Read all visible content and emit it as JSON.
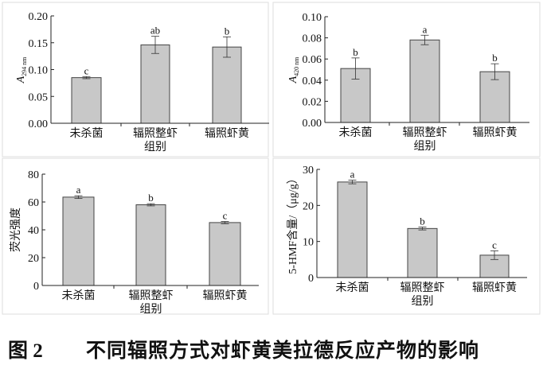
{
  "figure": {
    "label": "图 2",
    "caption": "不同辐照方式对虾黄美拉德反应产物的影响"
  },
  "colors": {
    "bar_fill": "#c8c8c8",
    "bar_stroke": "#444444",
    "axis": "#222222",
    "panel_border": "#dddddd"
  },
  "chart_data": [
    {
      "type": "bar",
      "title": "",
      "xlabel": "组别",
      "ylabel": "A294 nm",
      "ylabel_main": "A",
      "ylabel_sub": "294 nm",
      "categories": [
        "未杀菌",
        "辐照整虾",
        "辐照虾黄"
      ],
      "values": [
        0.085,
        0.146,
        0.142
      ],
      "errors": [
        0.002,
        0.016,
        0.019
      ],
      "significance": [
        "c",
        "ab",
        "b"
      ],
      "ylim": [
        0,
        0.2
      ],
      "yticks": [
        "0.00",
        "0.05",
        "0.10",
        "0.15",
        "0.20"
      ],
      "grid": false
    },
    {
      "type": "bar",
      "title": "",
      "xlabel": "组别",
      "ylabel": "A420 nm",
      "ylabel_main": "A",
      "ylabel_sub": "420 nm",
      "categories": [
        "未杀菌",
        "辐照整虾",
        "辐照虾黄"
      ],
      "values": [
        0.051,
        0.078,
        0.048
      ],
      "errors": [
        0.01,
        0.0045,
        0.0075
      ],
      "significance": [
        "b",
        "a",
        "b"
      ],
      "ylim": [
        0,
        0.1
      ],
      "yticks": [
        "0.00",
        "0.02",
        "0.04",
        "0.06",
        "0.08",
        "0.10"
      ],
      "grid": false
    },
    {
      "type": "bar",
      "title": "",
      "xlabel": "组别",
      "ylabel": "荧光强度",
      "categories": [
        "未杀菌",
        "辐照整虾",
        "辐照虾黄"
      ],
      "values": [
        63.5,
        58.0,
        45.2
      ],
      "errors": [
        1.0,
        0.8,
        0.8
      ],
      "significance": [
        "a",
        "b",
        "c"
      ],
      "ylim": [
        0,
        80
      ],
      "yticks": [
        "0",
        "20",
        "40",
        "60",
        "80"
      ],
      "grid": false
    },
    {
      "type": "bar",
      "title": "",
      "xlabel": "组别",
      "ylabel": "5-HMF含量/（μg/g）",
      "categories": [
        "未杀菌",
        "辐照整虾",
        "辐照虾黄"
      ],
      "values": [
        26.5,
        13.6,
        6.2
      ],
      "errors": [
        0.5,
        0.4,
        1.2
      ],
      "significance": [
        "a",
        "b",
        "c"
      ],
      "ylim": [
        0,
        30
      ],
      "yticks": [
        "0",
        "10",
        "20",
        "30"
      ],
      "grid": false
    }
  ]
}
